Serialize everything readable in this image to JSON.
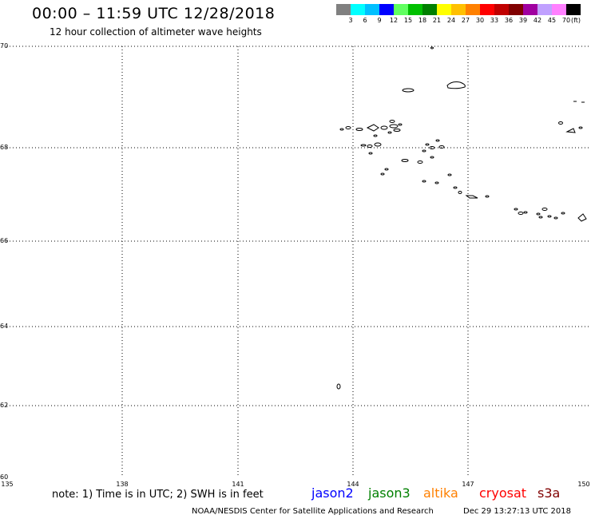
{
  "header": {
    "title": "00:00 – 11:59 UTC 12/28/2018",
    "subtitle": "12 hour collection of altimeter wave heights"
  },
  "colorbar": {
    "colors": [
      "#808080",
      "#00ffff",
      "#00c0ff",
      "#0000ff",
      "#60ff60",
      "#00c000",
      "#008000",
      "#ffff00",
      "#ffc000",
      "#ff8000",
      "#ff0000",
      "#c00000",
      "#800000",
      "#a000a0",
      "#c0a0ff",
      "#ff80ff",
      "#000000"
    ],
    "labels": [
      "3",
      "6",
      "9",
      "12",
      "15",
      "18",
      "21",
      "24",
      "27",
      "30",
      "33",
      "36",
      "39",
      "42",
      "45",
      "70"
    ],
    "unit": "(ft)"
  },
  "map": {
    "lat_labels": [
      "70",
      "68",
      "66",
      "64",
      "62",
      "60"
    ],
    "lon_labels": [
      "135",
      "138",
      "141",
      "144",
      "147",
      "150"
    ]
  },
  "footer": {
    "note": "note: 1) Time is in UTC; 2) SWH is in feet",
    "satellites": [
      {
        "name": "jason2",
        "color": "#0000ff"
      },
      {
        "name": "jason3",
        "color": "#008000"
      },
      {
        "name": "altika",
        "color": "#ff8000"
      },
      {
        "name": "cryosat",
        "color": "#ff0000"
      },
      {
        "name": "s3a",
        "color": "#800000"
      }
    ],
    "credit": "NOAA/NESDIS Center for Satellite Applications and Research",
    "timestamp": "Dec 29 13:27:13 UTC 2018"
  }
}
